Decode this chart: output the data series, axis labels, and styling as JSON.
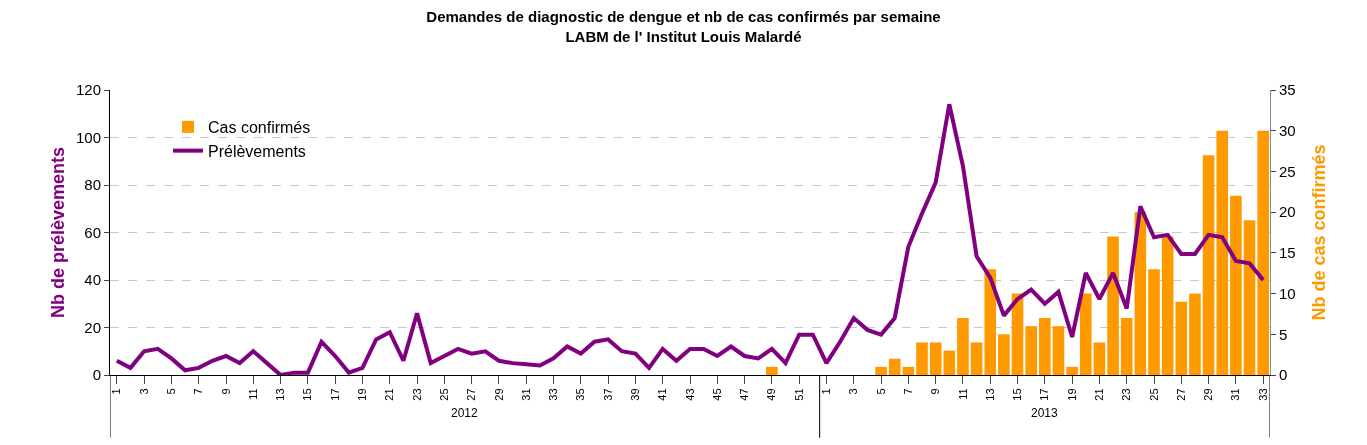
{
  "chart_data": {
    "type": "bar",
    "title": "Demandes de diagnostic de dengue et nb de cas confirmés par semaine\nLABM de l' Institut Louis Malardé",
    "ylabel": "Nb de prélèvements",
    "y2label": "Nb de cas confirmés",
    "categories": [
      "1",
      null,
      "3",
      null,
      "5",
      null,
      "7",
      null,
      "9",
      null,
      "11",
      null,
      "13",
      null,
      "15",
      null,
      "17",
      null,
      "19",
      null,
      "21",
      null,
      "23",
      null,
      "25",
      null,
      "27",
      null,
      "29",
      null,
      "31",
      null,
      "33",
      null,
      "35",
      null,
      "37",
      null,
      "39",
      null,
      "41",
      null,
      "43",
      null,
      "45",
      null,
      "47",
      null,
      "49",
      null,
      "51",
      null,
      "1",
      null,
      "3",
      null,
      "5",
      null,
      "7",
      null,
      "9",
      null,
      "11",
      null,
      "13",
      null,
      "15",
      null,
      "17",
      null,
      "19",
      null,
      "21",
      null,
      "23",
      null,
      "25",
      null,
      "27",
      null,
      "29",
      null,
      "31",
      null,
      "33"
    ],
    "series": [
      {
        "name": "Cas confirmés",
        "axis": "y2",
        "color": "#ff9900",
        "values": [
          0,
          0,
          0,
          0,
          0,
          0,
          0,
          0,
          0,
          0,
          0,
          0,
          0,
          0,
          0,
          0,
          0,
          0,
          0,
          0,
          0,
          0,
          0,
          0,
          0,
          0,
          0,
          0,
          0,
          0,
          0,
          0,
          0,
          0,
          0,
          0,
          0,
          0,
          0,
          0,
          0,
          0,
          0,
          0,
          0,
          0,
          0,
          0,
          1,
          0,
          0,
          0,
          0,
          0,
          0,
          0,
          1,
          2,
          1,
          4,
          4,
          3,
          7,
          4,
          13,
          5,
          10,
          6,
          7,
          6,
          1,
          10,
          4,
          17,
          7,
          20,
          13,
          17,
          9,
          10,
          27,
          30,
          22,
          19,
          30
        ]
      },
      {
        "name": "Prélèvements",
        "type": "line",
        "color": "#800080",
        "values": [
          6,
          3,
          10,
          11,
          7,
          2,
          3,
          6,
          8,
          5,
          10,
          5,
          0,
          1,
          1,
          14,
          8,
          1,
          3,
          15,
          18,
          6,
          26,
          5,
          8,
          11,
          9,
          10,
          6,
          5,
          4.5,
          4,
          7,
          12,
          9,
          14,
          15,
          10,
          9,
          3,
          11,
          6,
          11,
          11,
          8,
          12,
          8,
          7,
          11,
          5,
          17,
          17,
          5,
          14,
          24,
          19,
          17,
          24,
          54,
          68,
          81,
          114,
          88,
          50,
          41,
          25,
          32,
          36,
          30,
          35,
          16,
          43,
          32,
          43,
          28,
          71,
          58,
          59,
          51,
          51,
          59,
          58,
          48,
          47,
          40
        ]
      }
    ],
    "ylim": [
      0,
      120
    ],
    "yticks": [
      0,
      20,
      40,
      60,
      80,
      100,
      120
    ],
    "y2lim": [
      0,
      35
    ],
    "y2ticks": [
      0,
      5,
      10,
      15,
      20,
      25,
      30,
      35
    ],
    "grid": "y",
    "legend": "top left",
    "line_style": "solid",
    "annotations": [
      "2012",
      "2013"
    ]
  }
}
